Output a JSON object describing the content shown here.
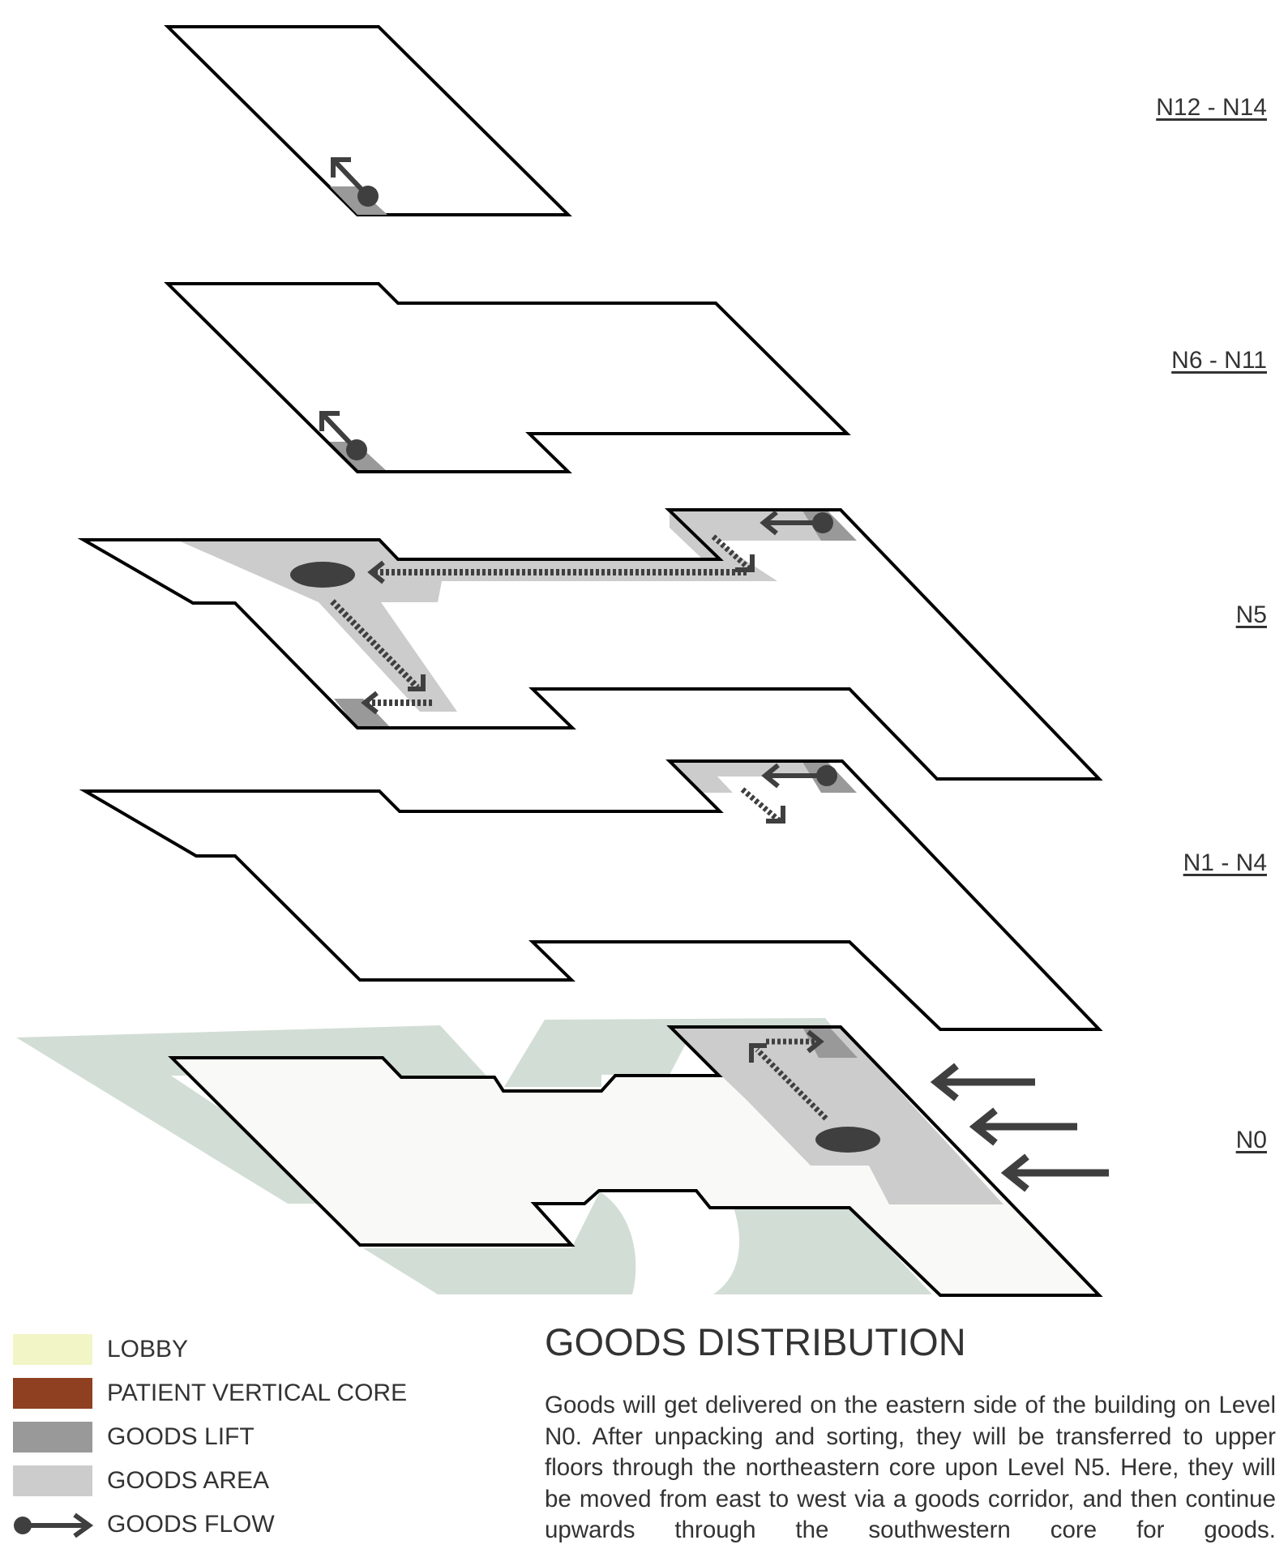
{
  "levels": [
    {
      "id": "n12-n14",
      "label": "N12 - N14"
    },
    {
      "id": "n6-n11",
      "label": "N6 - N11"
    },
    {
      "id": "n5",
      "label": "N5"
    },
    {
      "id": "n1-n4",
      "label": "N1 - N4"
    },
    {
      "id": "n0",
      "label": "N0"
    }
  ],
  "legend": [
    {
      "label": "LOBBY",
      "color": "#f2f5c6"
    },
    {
      "label": "PATIENT VERTICAL CORE",
      "color": "#8e4020"
    },
    {
      "label": "GOODS LIFT",
      "color": "#999999"
    },
    {
      "label": "GOODS AREA",
      "color": "#cccccc"
    },
    {
      "label": "GOODS FLOW",
      "color": "#3f3f3f"
    }
  ],
  "title": "GOODS DISTRIBUTION",
  "description": "Goods will get delivered on the eastern side of the building on Level N0. After unpacking and sorting, they will be transferred to upper floors through the northeastern core upon Level N5. Here, they will be moved from east to west via a goods corridor, and then continue upwards through the southwestern core for goods.",
  "colors": {
    "outline": "#000000",
    "landscape": "#d2ded5",
    "ground_floor_fill": "#f9f9f7",
    "goods_area": "#cccccc",
    "goods_lift": "#999999",
    "flow": "#3f3f3f"
  }
}
